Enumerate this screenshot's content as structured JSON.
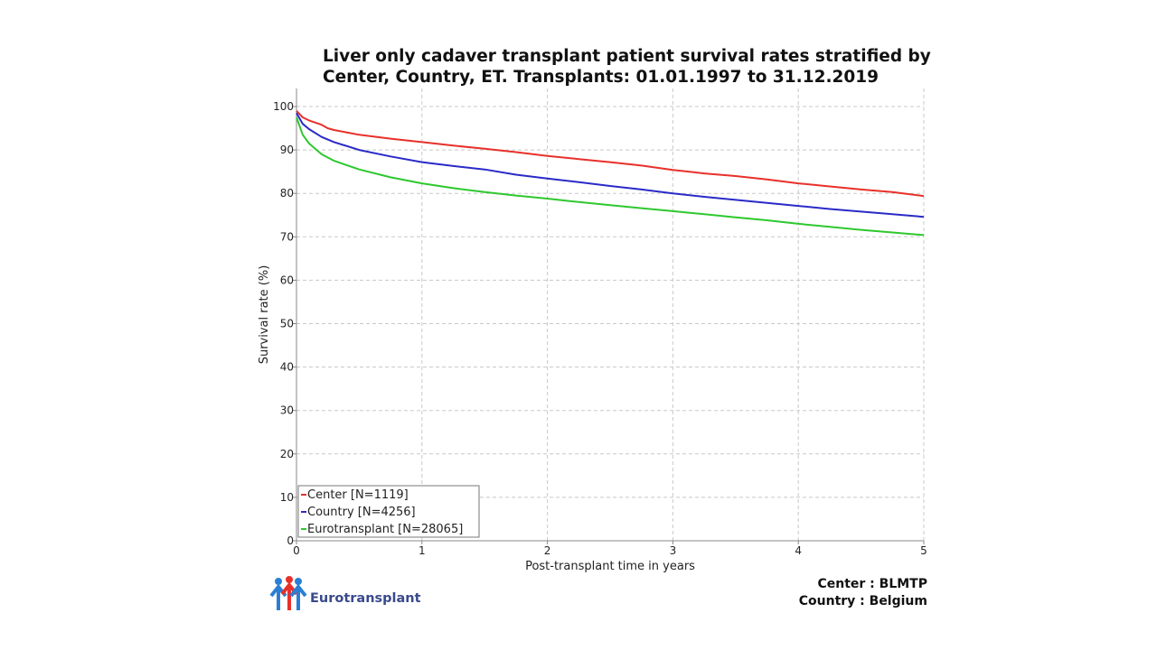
{
  "chart_data": {
    "type": "line",
    "title_line1": "Liver only cadaver transplant patient survival rates stratified by",
    "title_line2": "Center, Country, ET. Transplants: 01.01.1997 to 31.12.2019",
    "xlabel": "Post-transplant time in years",
    "ylabel": "Survival rate (%)",
    "xlim": [
      0,
      5
    ],
    "ylim": [
      0,
      100
    ],
    "xticks": [
      "0",
      "1",
      "2",
      "3",
      "4",
      "5"
    ],
    "yticks": [
      "0",
      "10",
      "20",
      "30",
      "40",
      "50",
      "60",
      "70",
      "80",
      "90",
      "100"
    ],
    "grid": true,
    "legend_position": "bottom-left",
    "series": [
      {
        "name": "Center [N=1119]",
        "color": "#e8302a",
        "x": [
          0,
          0.05,
          0.1,
          0.2,
          0.25,
          0.3,
          0.5,
          0.75,
          1,
          1.25,
          1.5,
          1.75,
          2,
          2.25,
          2.5,
          2.75,
          3,
          3.25,
          3.5,
          3.75,
          4,
          4.25,
          4.5,
          4.75,
          5
        ],
        "y": [
          99,
          97.5,
          96.8,
          95.8,
          95.0,
          94.6,
          93.5,
          92.6,
          91.8,
          91.0,
          90.3,
          89.5,
          88.6,
          87.9,
          87.2,
          86.4,
          85.4,
          84.6,
          84.0,
          83.2,
          82.3,
          81.6,
          80.9,
          80.3,
          79.4
        ]
      },
      {
        "name": "Country [N=4256]",
        "color": "#2a2ac8",
        "x": [
          0,
          0.05,
          0.1,
          0.2,
          0.3,
          0.5,
          0.75,
          1,
          1.25,
          1.5,
          1.75,
          2,
          2.25,
          2.5,
          2.75,
          3,
          3.25,
          3.5,
          3.75,
          4,
          4.25,
          4.5,
          4.75,
          5
        ],
        "y": [
          98.5,
          96.0,
          94.8,
          93.0,
          91.8,
          90.0,
          88.5,
          87.2,
          86.3,
          85.5,
          84.3,
          83.4,
          82.6,
          81.7,
          80.9,
          80.0,
          79.2,
          78.5,
          77.8,
          77.1,
          76.4,
          75.8,
          75.2,
          74.6
        ]
      },
      {
        "name": "Eurotransplant [N=28065]",
        "color": "#2ec82e",
        "x": [
          0,
          0.05,
          0.1,
          0.2,
          0.3,
          0.5,
          0.75,
          1,
          1.25,
          1.5,
          1.75,
          2,
          2.25,
          2.5,
          2.75,
          3,
          3.25,
          3.5,
          3.75,
          4,
          4.25,
          4.5,
          4.75,
          5
        ],
        "y": [
          97.5,
          93.5,
          91.5,
          89.0,
          87.5,
          85.5,
          83.7,
          82.3,
          81.2,
          80.3,
          79.5,
          78.8,
          78.0,
          77.3,
          76.6,
          75.9,
          75.2,
          74.5,
          73.8,
          73.0,
          72.3,
          71.6,
          71.0,
          70.4
        ]
      }
    ]
  },
  "footer": {
    "center_line": "Center : BLMTP",
    "country_line": "Country : Belgium",
    "logo_text": "Eurotransplant",
    "logo_colors": [
      "#e8302a",
      "#2a7fd4"
    ]
  }
}
